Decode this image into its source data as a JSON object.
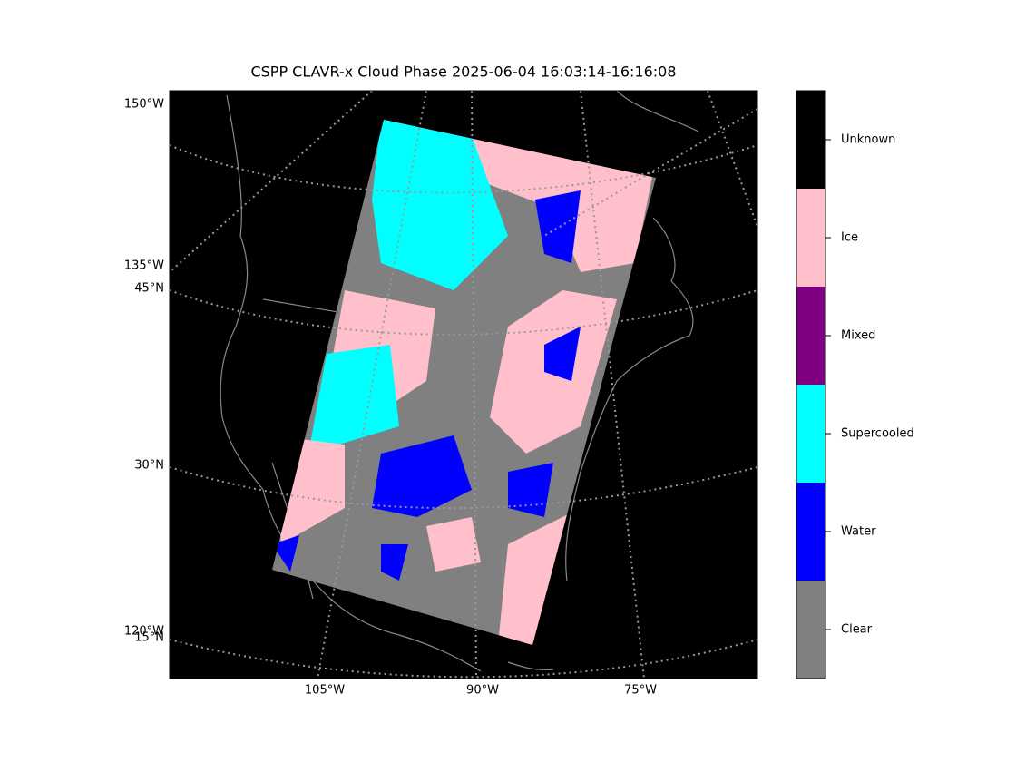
{
  "title": "CSPP CLAVR-x Cloud Phase 2025-06-04 16:03:14-16:16:08",
  "map": {
    "left_labels": [
      "150°W",
      "135°W",
      "45°N",
      "30°N",
      "120°W",
      "15°N"
    ],
    "bottom_labels": [
      "105°W",
      "90°W",
      "75°W"
    ]
  },
  "colorbar": {
    "classes": [
      {
        "label": "Unknown",
        "color": "#000000"
      },
      {
        "label": "Ice",
        "color": "#ffc0cb"
      },
      {
        "label": "Mixed",
        "color": "#800080"
      },
      {
        "label": "Supercooled",
        "color": "#00ffff"
      },
      {
        "label": "Water",
        "color": "#0000ff"
      },
      {
        "label": "Clear",
        "color": "#808080"
      }
    ]
  }
}
